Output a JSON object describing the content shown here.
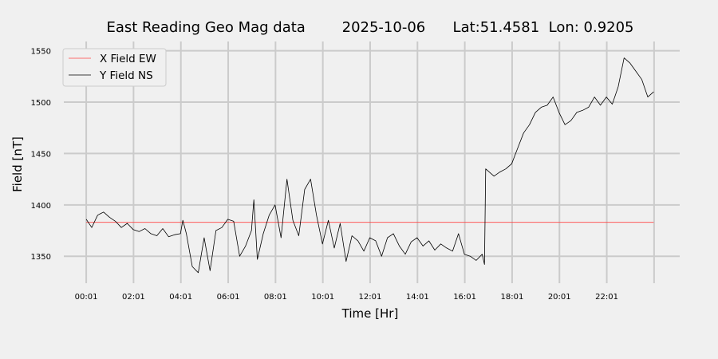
{
  "chart_data": {
    "type": "line",
    "title": "East Reading Geo Mag data        2025-10-06      Lat:51.4581  Lon: 0.9205",
    "xlabel": "Time  [Hr]",
    "ylabel": "Field  [nT]",
    "xlim_hours": [
      -0.93,
      25.1
    ],
    "ylim": [
      1330,
      1559
    ],
    "yticks": [
      1350,
      1400,
      1450,
      1500,
      1550
    ],
    "xtick_hours": [
      0.0167,
      2.0167,
      4.0167,
      6.0167,
      8.0167,
      10.0167,
      12.0167,
      14.0167,
      16.0167,
      18.0167,
      20.0167,
      22.0167,
      24.0167
    ],
    "xtick_labels": [
      "00:01",
      "02:01",
      "04:01",
      "06:01",
      "08:01",
      "10:01",
      "12:01",
      "14:01",
      "16:01",
      "18:01",
      "20:01",
      "22:01",
      ""
    ],
    "grid": true,
    "legend_placement": "top-left",
    "series": [
      {
        "name": "X Field EW",
        "color": "#ff4444",
        "x": [
          0.0167,
          24.0
        ],
        "y": [
          1383,
          1383
        ]
      },
      {
        "name": "Y Field NS",
        "color": "#000000",
        "x": [
          0.0167,
          0.25,
          0.5,
          0.75,
          1.0,
          1.25,
          1.5,
          1.75,
          2.0,
          2.25,
          2.5,
          2.75,
          3.0,
          3.25,
          3.5,
          3.75,
          4.0,
          4.1,
          4.25,
          4.5,
          4.75,
          5.0,
          5.25,
          5.5,
          5.75,
          6.0,
          6.25,
          6.5,
          6.75,
          7.0,
          7.1,
          7.25,
          7.5,
          7.75,
          8.0,
          8.25,
          8.5,
          8.75,
          9.0,
          9.25,
          9.5,
          9.75,
          10.0,
          10.25,
          10.5,
          10.75,
          11.0,
          11.25,
          11.5,
          11.75,
          12.0,
          12.25,
          12.5,
          12.75,
          13.0,
          13.25,
          13.5,
          13.75,
          14.0,
          14.25,
          14.5,
          14.75,
          15.0,
          15.25,
          15.5,
          15.75,
          16.0,
          16.25,
          16.5,
          16.75,
          16.85,
          16.9,
          17.25,
          17.5,
          17.75,
          18.0,
          18.25,
          18.5,
          18.75,
          19.0,
          19.25,
          19.5,
          19.75,
          20.0,
          20.25,
          20.5,
          20.75,
          21.0,
          21.25,
          21.5,
          21.75,
          22.0,
          22.25,
          22.5,
          22.75,
          23.0,
          23.25,
          23.5,
          23.75,
          24.0
        ],
        "y": [
          1386,
          1378,
          1390,
          1393,
          1388,
          1384,
          1378,
          1382,
          1376,
          1374,
          1377,
          1372,
          1370,
          1377,
          1369,
          1371,
          1372,
          1385,
          1372,
          1340,
          1334,
          1368,
          1336,
          1375,
          1378,
          1386,
          1384,
          1350,
          1360,
          1375,
          1405,
          1347,
          1372,
          1390,
          1400,
          1368,
          1425,
          1385,
          1370,
          1415,
          1425,
          1390,
          1362,
          1385,
          1358,
          1382,
          1345,
          1370,
          1365,
          1355,
          1368,
          1365,
          1350,
          1368,
          1372,
          1360,
          1352,
          1364,
          1368,
          1360,
          1365,
          1356,
          1362,
          1358,
          1355,
          1372,
          1352,
          1350,
          1346,
          1352,
          1342,
          1435,
          1428,
          1432,
          1435,
          1440,
          1455,
          1470,
          1478,
          1490,
          1495,
          1497,
          1505,
          1490,
          1478,
          1482,
          1490,
          1492,
          1495,
          1505,
          1497,
          1505,
          1498,
          1515,
          1543,
          1538,
          1530,
          1522,
          1505,
          1510
        ]
      }
    ]
  }
}
